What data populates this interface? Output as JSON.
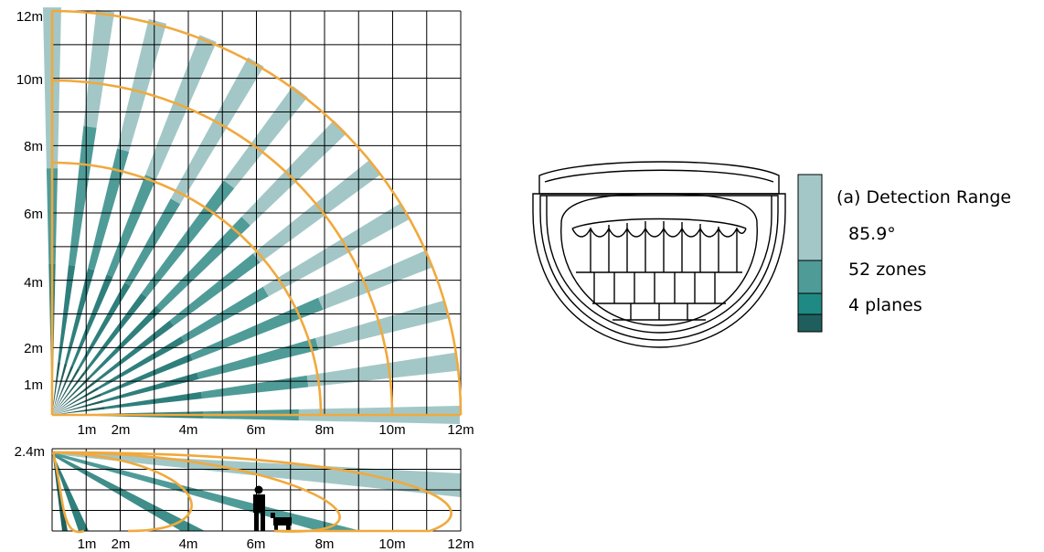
{
  "top_view": {
    "y_ticks": [
      "12m",
      "10m",
      "8m",
      "6m",
      "4m",
      "2m",
      "1m"
    ],
    "x_ticks": [
      "1m",
      "2m",
      "4m",
      "6m",
      "8m",
      "10m",
      "12m"
    ]
  },
  "side_view": {
    "height_label": "2.4m",
    "x_ticks": [
      "1m",
      "2m",
      "4m",
      "6m",
      "8m",
      "10m",
      "12m"
    ]
  },
  "legend": {
    "title": "(a) Detection Range",
    "angle": "85.9°",
    "zones": "52 zones",
    "planes": "4 planes"
  },
  "colors": {
    "far_band": "#a3c7c7",
    "mid_band": "#4f9b98",
    "near_band": "#2f7f7c",
    "closest_band": "#1f5e5c",
    "range_arc": "#f0a93d",
    "grid": "#000000"
  }
}
